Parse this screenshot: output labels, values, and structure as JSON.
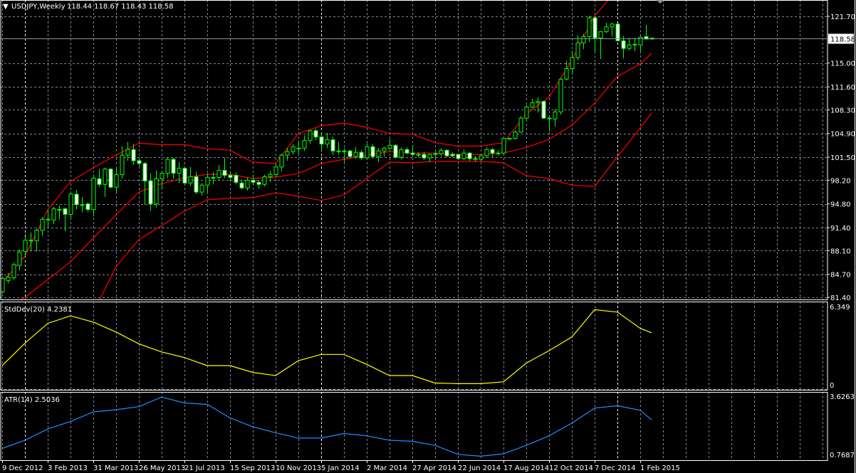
{
  "header": {
    "menu_glyph": "▼",
    "symbol_label": "USDJPY,Weekly",
    "ohlc_readout": "118.44 118.67 118.43 118.58"
  },
  "colors": {
    "background": "#000000",
    "grid": "#7d8794",
    "year_separator": "#ffffff",
    "candle": "#00ff00",
    "bear_fill": "#ffffff",
    "bull_fill": "#000000",
    "bollinger": "#ff0000",
    "stddev_line": "#ffff00",
    "atr_line": "#1e90ff",
    "current_price_line": "#8796a8",
    "axis_text": "#ffffff"
  },
  "chart_data": [
    {
      "type": "candlestick",
      "title": "USDJPY,Weekly",
      "ylim": [
        81.1,
        124.05
      ],
      "yticks": [
        "121.70",
        "115.00",
        "111.60",
        "108.30",
        "104.90",
        "101.50",
        "98.20",
        "94.80",
        "91.40",
        "88.10",
        "84.70",
        "81.40"
      ],
      "current_price": "118.58",
      "xticks": [
        "9 Dec 2012",
        "3 Feb 2013",
        "31 Mar 2013",
        "26 May 2013",
        "21 Jul 2013",
        "15 Sep 2013",
        "10 Nov 2013",
        "5 Jan 2014",
        "2 Mar 2014",
        "27 Apr 2014",
        "22 Jun 2014",
        "17 Aug 2014",
        "12 Oct 2014",
        "7 Dec 2014",
        "1 Feb 2015"
      ],
      "ohlc": [
        [
          82.2,
          84.4,
          81.9,
          84.1
        ],
        [
          83.8,
          84.9,
          83.4,
          84.3
        ],
        [
          84.2,
          86.4,
          83.9,
          86.1
        ],
        [
          86.0,
          88.3,
          85.3,
          87.9
        ],
        [
          88.0,
          90.1,
          87.0,
          89.6
        ],
        [
          89.6,
          90.7,
          88.0,
          89.5
        ],
        [
          89.5,
          91.3,
          88.0,
          91.0
        ],
        [
          91.0,
          92.9,
          90.2,
          92.6
        ],
        [
          92.6,
          93.9,
          91.4,
          92.6
        ],
        [
          92.5,
          94.4,
          91.9,
          94.1
        ],
        [
          94.0,
          94.6,
          92.6,
          94.0
        ],
        [
          94.1,
          94.3,
          90.9,
          93.3
        ],
        [
          93.3,
          96.6,
          92.6,
          96.2
        ],
        [
          96.2,
          96.8,
          94.0,
          94.7
        ],
        [
          94.7,
          95.8,
          93.6,
          94.7
        ],
        [
          94.8,
          95.0,
          93.6,
          94.0
        ],
        [
          94.0,
          99.0,
          93.0,
          98.5
        ],
        [
          98.4,
          99.8,
          97.2,
          97.6
        ],
        [
          97.6,
          100.0,
          95.8,
          99.8
        ],
        [
          99.8,
          99.9,
          97.0,
          97.2
        ],
        [
          97.2,
          99.9,
          96.5,
          99.0
        ],
        [
          99.0,
          103.1,
          98.4,
          101.8
        ],
        [
          101.8,
          103.7,
          101.0,
          102.6
        ],
        [
          102.6,
          103.4,
          100.4,
          101.0
        ],
        [
          101.0,
          101.5,
          100.2,
          100.6
        ],
        [
          100.6,
          100.8,
          94.7,
          98.1
        ],
        [
          98.1,
          99.2,
          93.8,
          94.8
        ],
        [
          94.8,
          99.6,
          94.3,
          98.4
        ],
        [
          98.4,
          99.4,
          97.0,
          99.2
        ],
        [
          99.2,
          101.5,
          98.5,
          101.2
        ],
        [
          101.2,
          101.4,
          98.4,
          99.2
        ],
        [
          99.2,
          100.8,
          97.8,
          99.9
        ],
        [
          99.9,
          100.2,
          97.5,
          97.8
        ],
        [
          97.8,
          100.1,
          97.4,
          98.7
        ],
        [
          98.7,
          99.4,
          96.2,
          96.5
        ],
        [
          96.5,
          97.8,
          96.0,
          97.5
        ],
        [
          97.5,
          99.2,
          96.2,
          98.6
        ],
        [
          98.6,
          99.4,
          97.6,
          98.6
        ],
        [
          98.6,
          100.4,
          98.2,
          99.6
        ],
        [
          99.6,
          101.4,
          98.5,
          98.9
        ],
        [
          98.9,
          99.5,
          98.0,
          98.6
        ],
        [
          98.9,
          99.3,
          97.6,
          97.9
        ],
        [
          97.8,
          98.3,
          96.9,
          97.1
        ],
        [
          97.1,
          98.6,
          96.7,
          98.2
        ],
        [
          98.2,
          99.0,
          97.6,
          97.9
        ],
        [
          97.9,
          98.2,
          97.0,
          97.6
        ],
        [
          97.6,
          99.0,
          97.3,
          98.7
        ],
        [
          98.7,
          99.5,
          98.0,
          99.0
        ],
        [
          99.0,
          100.6,
          98.6,
          100.1
        ],
        [
          100.1,
          102.0,
          99.5,
          101.8
        ],
        [
          101.8,
          102.8,
          101.0,
          102.3
        ],
        [
          102.3,
          103.4,
          101.9,
          103.0
        ],
        [
          102.8,
          103.9,
          101.9,
          102.8
        ],
        [
          102.8,
          104.6,
          102.4,
          103.9
        ],
        [
          103.9,
          105.4,
          103.4,
          105.3
        ],
        [
          105.3,
          105.6,
          103.9,
          104.4
        ],
        [
          104.4,
          105.0,
          102.4,
          103.4
        ],
        [
          103.4,
          105.0,
          102.8,
          104.0
        ],
        [
          104.0,
          104.4,
          101.8,
          102.4
        ],
        [
          102.4,
          103.7,
          101.9,
          102.4
        ],
        [
          102.4,
          102.8,
          100.8,
          102.4
        ],
        [
          102.4,
          102.6,
          101.4,
          101.6
        ],
        [
          101.6,
          103.0,
          101.3,
          102.2
        ],
        [
          102.2,
          102.5,
          101.1,
          101.4
        ],
        [
          101.4,
          103.5,
          101.2,
          103.0
        ],
        [
          103.0,
          103.4,
          101.3,
          101.6
        ],
        [
          101.6,
          102.8,
          100.8,
          102.4
        ],
        [
          102.4,
          103.0,
          101.6,
          102.8
        ],
        [
          102.8,
          104.1,
          102.4,
          103.2
        ],
        [
          103.2,
          103.4,
          101.3,
          101.5
        ],
        [
          101.5,
          102.9,
          101.2,
          102.6
        ],
        [
          102.6,
          102.9,
          101.9,
          102.1
        ],
        [
          102.1,
          103.2,
          101.6,
          101.9
        ],
        [
          101.9,
          102.2,
          101.5,
          101.9
        ],
        [
          101.9,
          102.3,
          101.1,
          101.4
        ],
        [
          101.4,
          102.0,
          100.8,
          101.9
        ],
        [
          101.9,
          102.3,
          101.1,
          102.0
        ],
        [
          102.0,
          102.8,
          101.7,
          102.5
        ],
        [
          102.5,
          102.6,
          101.5,
          101.7
        ],
        [
          101.9,
          102.2,
          101.5,
          101.7
        ],
        [
          101.9,
          102.0,
          101.2,
          101.3
        ],
        [
          101.3,
          102.6,
          101.1,
          102.1
        ],
        [
          102.1,
          102.2,
          101.0,
          101.3
        ],
        [
          101.3,
          101.7,
          100.9,
          101.3
        ],
        [
          101.2,
          102.0,
          100.9,
          101.7
        ],
        [
          101.7,
          102.9,
          101.4,
          102.6
        ],
        [
          102.6,
          102.8,
          101.5,
          102.1
        ],
        [
          102.1,
          102.5,
          101.7,
          102.1
        ],
        [
          102.1,
          104.3,
          101.9,
          104.2
        ],
        [
          104.2,
          104.3,
          104.0,
          104.2
        ],
        [
          104.2,
          105.4,
          104.0,
          105.1
        ],
        [
          105.1,
          107.4,
          105.0,
          107.1
        ],
        [
          107.1,
          109.0,
          106.8,
          108.7
        ],
        [
          108.7,
          109.9,
          108.5,
          109.3
        ],
        [
          109.3,
          110.1,
          107.9,
          109.5
        ],
        [
          109.5,
          109.6,
          107.0,
          107.1
        ],
        [
          107.1,
          107.4,
          105.2,
          107.0
        ],
        [
          107.0,
          108.4,
          105.9,
          108.0
        ],
        [
          108.0,
          112.9,
          107.6,
          112.7
        ],
        [
          112.7,
          115.3,
          112.5,
          114.2
        ],
        [
          114.2,
          116.8,
          113.6,
          115.8
        ],
        [
          115.8,
          119.0,
          115.4,
          117.9
        ],
        [
          117.9,
          119.2,
          117.0,
          118.8
        ],
        [
          118.8,
          121.8,
          118.0,
          121.5
        ],
        [
          121.5,
          121.6,
          116.7,
          118.6
        ],
        [
          118.6,
          119.6,
          115.6,
          119.5
        ],
        [
          119.5,
          120.8,
          119.3,
          120.2
        ],
        [
          120.2,
          120.8,
          118.8,
          120.6
        ],
        [
          120.6,
          120.7,
          118.2,
          118.2
        ],
        [
          118.2,
          118.9,
          115.7,
          117.1
        ],
        [
          117.1,
          118.6,
          116.8,
          117.6
        ],
        [
          117.7,
          118.6,
          116.7,
          117.7
        ],
        [
          117.6,
          118.9,
          116.7,
          118.7
        ],
        [
          118.8,
          120.5,
          118.4,
          118.44
        ],
        [
          118.44,
          118.67,
          118.43,
          118.58
        ]
      ],
      "overlay_dates": [
        "2012-12-09",
        "2013-01-06",
        "2013-02-03",
        "2013-03-03",
        "2013-03-31",
        "2013-04-28",
        "2013-05-26",
        "2013-06-23",
        "2013-07-21",
        "2013-08-18",
        "2013-09-15",
        "2013-10-13",
        "2013-11-10",
        "2013-12-08",
        "2014-01-05",
        "2014-02-02",
        "2014-03-02",
        "2014-03-30",
        "2014-04-27",
        "2014-05-25",
        "2014-06-22",
        "2014-07-20",
        "2014-08-17",
        "2014-09-14",
        "2014-10-12",
        "2014-11-09",
        "2014-12-07",
        "2015-01-04",
        "2015-02-01",
        "2015-02-15"
      ],
      "bollinger": {
        "upper": [
          83.55,
          87.3,
          93.95,
          98.0,
          100.0,
          101.8,
          103.5,
          103.3,
          103.3,
          102.7,
          102.5,
          100.8,
          100.6,
          104.9,
          106.0,
          106.4,
          105.8,
          104.9,
          104.8,
          103.6,
          103.1,
          103.1,
          103.6,
          107.7,
          110.1,
          115.4,
          121.8,
          125.6,
          127.1,
          127.6
        ],
        "middle": [
          79.5,
          81.4,
          83.95,
          86.5,
          89.9,
          93.25,
          96.5,
          97.7,
          98.55,
          99.05,
          99.05,
          98.45,
          98.65,
          99.15,
          100.6,
          101.2,
          101.8,
          102.3,
          102.1,
          102.1,
          101.9,
          101.9,
          102.1,
          102.9,
          104.05,
          106.1,
          109.25,
          113.1,
          114.9,
          116.4
        ],
        "lower": [
          66.9,
          70.0,
          73.0,
          76.1,
          79.2,
          85.8,
          89.7,
          91.7,
          93.75,
          95.4,
          95.6,
          95.7,
          96.4,
          95.9,
          95.3,
          96.1,
          98.45,
          100.8,
          100.7,
          100.9,
          100.9,
          100.9,
          100.7,
          98.85,
          98.45,
          97.5,
          97.3,
          101.6,
          105.7,
          107.8
        ]
      }
    },
    {
      "type": "line",
      "title": "StdDev(20) 4.2381",
      "ylim": [
        0,
        6.349
      ],
      "yticks": [
        "6.349",
        "0"
      ],
      "values": [
        1.6,
        3.4,
        5.0,
        5.6,
        5.1,
        4.3,
        3.35,
        2.7,
        2.25,
        1.6,
        1.6,
        1.05,
        0.8,
        2.0,
        2.5,
        2.5,
        1.7,
        0.8,
        0.8,
        0.2,
        0.15,
        0.15,
        0.3,
        1.8,
        2.8,
        3.9,
        6.1,
        5.9,
        4.6,
        4.24
      ]
    },
    {
      "type": "line",
      "title": "ATR(14) 2.5036",
      "ylim": [
        0.7687,
        3.6263
      ],
      "yticks": [
        "3.6263",
        "0.7687"
      ],
      "values": [
        1.1,
        1.5,
        2.05,
        2.42,
        2.89,
        3.0,
        3.15,
        3.62,
        3.33,
        3.26,
        2.6,
        2.16,
        1.87,
        1.61,
        1.61,
        1.83,
        1.72,
        1.5,
        1.45,
        1.25,
        0.81,
        0.72,
        0.84,
        1.25,
        1.72,
        2.34,
        3.08,
        3.19,
        2.97,
        2.5
      ]
    }
  ]
}
